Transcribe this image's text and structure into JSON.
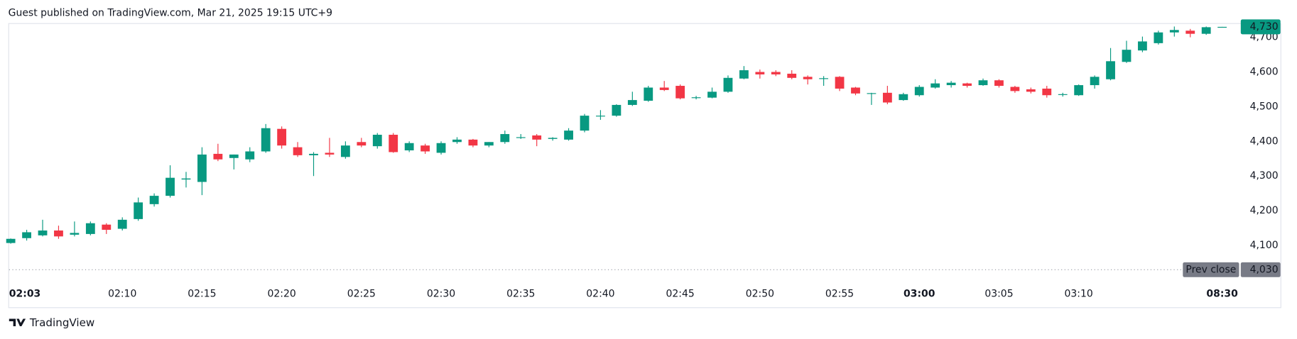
{
  "chart_data": {
    "type": "candlestick",
    "title": "Guest published on TradingView.com, Mar 21, 2025 19:15 UTC+9",
    "brand": "TradingView",
    "categories": [
      "02:03",
      null,
      null,
      null,
      null,
      null,
      null,
      "02:10",
      null,
      null,
      null,
      null,
      "02:15",
      null,
      null,
      null,
      null,
      "02:20",
      null,
      null,
      null,
      null,
      "02:25",
      null,
      null,
      null,
      null,
      "02:30",
      null,
      null,
      null,
      null,
      "02:35",
      null,
      null,
      null,
      null,
      "02:40",
      null,
      null,
      null,
      null,
      "02:45",
      null,
      null,
      null,
      null,
      "02:50",
      null,
      null,
      null,
      null,
      "02:55",
      null,
      null,
      null,
      null,
      "03:00",
      null,
      null,
      null,
      null,
      "03:05",
      null,
      null,
      null,
      null,
      "03:10",
      null,
      null,
      null,
      null,
      null,
      null,
      null,
      null,
      "08:30"
    ],
    "open": [
      4107,
      4121,
      4129,
      4143,
      4131,
      4133,
      4160,
      4148,
      4176,
      4219,
      4243,
      4290,
      4283,
      4364,
      4352,
      4348,
      4371,
      4436,
      4383,
      4360,
      4367,
      4355,
      4398,
      4386,
      4419,
      4374,
      4388,
      4367,
      4398,
      4405,
      4388,
      4398,
      4410,
      4417,
      4407,
      4405,
      4431,
      4472,
      4474,
      4505,
      4517,
      4555,
      4560,
      4526,
      4526,
      4543,
      4581,
      4600,
      4600,
      4595,
      4586,
      4580,
      4586,
      4555,
      4537,
      4540,
      4519,
      4533,
      4555,
      4562,
      4567,
      4562,
      4576,
      4557,
      4550,
      4552,
      4535,
      4533,
      4562,
      4579,
      4629,
      4662,
      4683,
      4714,
      4719,
      4710,
      4729
    ],
    "high": [
      4120,
      4145,
      4174,
      4157,
      4169,
      4169,
      4164,
      4181,
      4238,
      4250,
      4331,
      4312,
      4383,
      4393,
      4362,
      4383,
      4450,
      4443,
      4398,
      4369,
      4410,
      4400,
      4410,
      4424,
      4424,
      4400,
      4393,
      4400,
      4412,
      4407,
      4398,
      4431,
      4421,
      4421,
      4412,
      4438,
      4479,
      4490,
      4507,
      4543,
      4560,
      4574,
      4564,
      4531,
      4555,
      4590,
      4617,
      4607,
      4605,
      4605,
      4590,
      4588,
      4588,
      4557,
      4540,
      4560,
      4540,
      4562,
      4579,
      4574,
      4569,
      4581,
      4579,
      4560,
      4555,
      4560,
      4540,
      4564,
      4590,
      4669,
      4690,
      4702,
      4719,
      4731,
      4724,
      4731,
      4730
    ],
    "low": [
      4105,
      4114,
      4126,
      4119,
      4126,
      4129,
      4133,
      4143,
      4171,
      4212,
      4238,
      4267,
      4245,
      4343,
      4319,
      4340,
      4367,
      4379,
      4355,
      4300,
      4355,
      4350,
      4383,
      4379,
      4367,
      4369,
      4364,
      4362,
      4393,
      4383,
      4383,
      4393,
      4407,
      4386,
      4402,
      4402,
      4426,
      4462,
      4471,
      4502,
      4514,
      4545,
      4521,
      4521,
      4524,
      4540,
      4579,
      4581,
      4588,
      4579,
      4564,
      4560,
      4545,
      4533,
      4505,
      4507,
      4517,
      4529,
      4552,
      4555,
      4555,
      4560,
      4555,
      4540,
      4538,
      4526,
      4529,
      4531,
      4552,
      4576,
      4626,
      4657,
      4679,
      4702,
      4700,
      4707,
      4729
    ],
    "close": [
      4119,
      4138,
      4143,
      4126,
      4136,
      4164,
      4145,
      4174,
      4224,
      4243,
      4295,
      4293,
      4362,
      4348,
      4362,
      4371,
      4438,
      4388,
      4360,
      4364,
      4362,
      4388,
      4388,
      4419,
      4369,
      4395,
      4371,
      4395,
      4405,
      4388,
      4398,
      4421,
      4412,
      4405,
      4410,
      4431,
      4474,
      4474,
      4505,
      4519,
      4555,
      4548,
      4524,
      4527,
      4543,
      4583,
      4605,
      4593,
      4593,
      4583,
      4579,
      4582,
      4552,
      4538,
      4539,
      4512,
      4536,
      4557,
      4567,
      4569,
      4560,
      4576,
      4560,
      4545,
      4543,
      4533,
      4536,
      4562,
      4586,
      4631,
      4664,
      4688,
      4714,
      4721,
      4710,
      4729,
      4730
    ],
    "up_color": "#089981",
    "down_color": "#f23645",
    "ylim": [
      3998,
      4736
    ],
    "yticks": [
      {
        "value": 4100,
        "label": "4,100"
      },
      {
        "value": 4200,
        "label": "4,200"
      },
      {
        "value": 4300,
        "label": "4,300"
      },
      {
        "value": 4400,
        "label": "4,400"
      },
      {
        "value": 4500,
        "label": "4,500"
      },
      {
        "value": 4600,
        "label": "4,600"
      },
      {
        "value": 4700,
        "label": "4,700"
      }
    ],
    "prev_close": {
      "name": "Prev close",
      "value": 4030,
      "label": "4,030"
    },
    "last_price": {
      "value": 4730,
      "label": "4,730"
    }
  }
}
